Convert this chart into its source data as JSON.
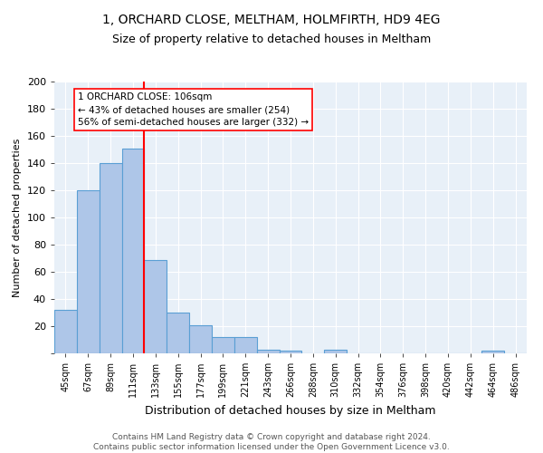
{
  "title1": "1, ORCHARD CLOSE, MELTHAM, HOLMFIRTH, HD9 4EG",
  "title2": "Size of property relative to detached houses in Meltham",
  "xlabel": "Distribution of detached houses by size in Meltham",
  "ylabel": "Number of detached properties",
  "categories": [
    "45sqm",
    "67sqm",
    "89sqm",
    "111sqm",
    "133sqm",
    "155sqm",
    "177sqm",
    "199sqm",
    "221sqm",
    "243sqm",
    "266sqm",
    "288sqm",
    "310sqm",
    "332sqm",
    "354sqm",
    "376sqm",
    "398sqm",
    "420sqm",
    "442sqm",
    "464sqm",
    "486sqm"
  ],
  "values": [
    32,
    120,
    140,
    151,
    69,
    30,
    21,
    12,
    12,
    3,
    2,
    0,
    3,
    0,
    0,
    0,
    0,
    0,
    0,
    2,
    0
  ],
  "bar_color": "#aec6e8",
  "bar_edge_color": "#5a9fd4",
  "bar_width": 1.0,
  "vline_x": 3.5,
  "vline_color": "red",
  "annotation_text": "1 ORCHARD CLOSE: 106sqm\n← 43% of detached houses are smaller (254)\n56% of semi-detached houses are larger (332) →",
  "annotation_box_color": "white",
  "annotation_box_edge_color": "red",
  "ylim": [
    0,
    200
  ],
  "yticks": [
    0,
    20,
    40,
    60,
    80,
    100,
    120,
    140,
    160,
    180,
    200
  ],
  "background_color": "#e8f0f8",
  "footer": "Contains HM Land Registry data © Crown copyright and database right 2024.\nContains public sector information licensed under the Open Government Licence v3.0."
}
